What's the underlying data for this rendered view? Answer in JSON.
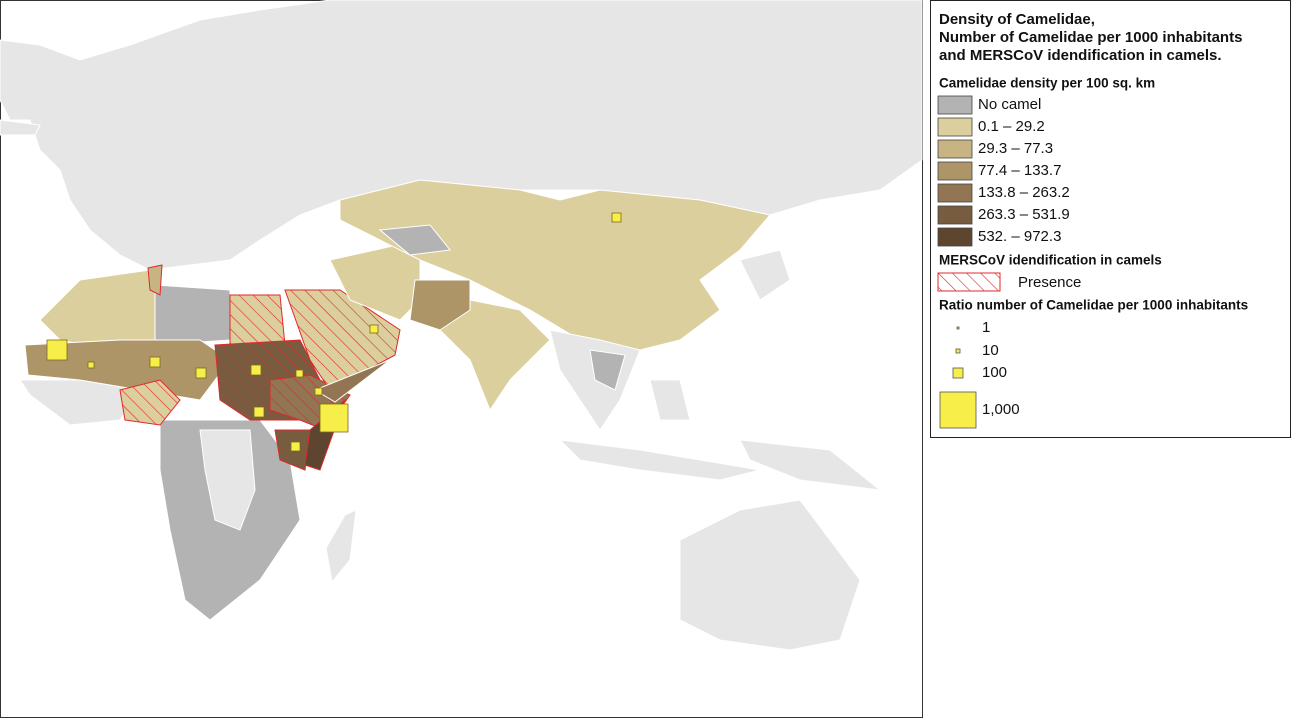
{
  "legend": {
    "title": [
      "Density of Camelidae,",
      "Number of Camelidae per 1000 inhabitants",
      "and MERSCoV idendification in camels."
    ],
    "density": {
      "heading": "Camelidae density per 100 sq. km",
      "classes": [
        {
          "label": "No camel",
          "color": "#b3b3b3"
        },
        {
          "label": "0.1 – 29.2",
          "color": "#dccf9e"
        },
        {
          "label": "29.3 – 77.3",
          "color": "#c8b483"
        },
        {
          "label": "77.4 – 133.7",
          "color": "#ad9568"
        },
        {
          "label": "133.8 – 263.2",
          "color": "#927653"
        },
        {
          "label": "263.3 – 531.9",
          "color": "#775c40"
        },
        {
          "label": "532. – 972.3",
          "color": "#5e4530"
        }
      ]
    },
    "mers": {
      "heading": "MERSCoV idendification in camels",
      "label": "Presence",
      "color": "#e0282b"
    },
    "ratio": {
      "heading": "Ratio number of Camelidae per 1000 inhabitants",
      "sizes": [
        {
          "label": "1"
        },
        {
          "label": "10"
        },
        {
          "label": "100"
        },
        {
          "label": "1,000"
        }
      ],
      "color": "#f7ee4a"
    }
  }
}
